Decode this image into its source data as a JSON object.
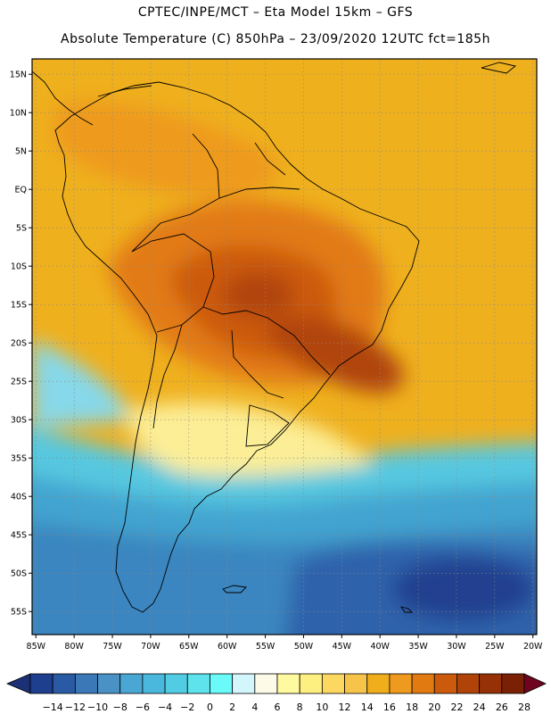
{
  "header": {
    "line1": "CPTEC/INPE/MCT –  Eta Model 15km – GFS",
    "line2": "Absolute Temperature (C) 850hPa – 23/09/2020 12UTC fct=185h"
  },
  "map": {
    "lat_labels": [
      "15N",
      "10N",
      "5N",
      "EQ",
      "5S",
      "10S",
      "15S",
      "20S",
      "25S",
      "30S",
      "35S",
      "40S",
      "45S",
      "50S",
      "55S"
    ],
    "lon_labels": [
      "85W",
      "80W",
      "75W",
      "70W",
      "65W",
      "60W",
      "55W",
      "50W",
      "45W",
      "40W",
      "35W",
      "30W",
      "25W",
      "20W"
    ],
    "lat_values": [
      15,
      10,
      5,
      0,
      -5,
      -10,
      -15,
      -20,
      -25,
      -30,
      -35,
      -40,
      -45,
      -50,
      -55
    ],
    "lon_values": [
      -85,
      -80,
      -75,
      -70,
      -65,
      -60,
      -55,
      -50,
      -45,
      -40,
      -35,
      -30,
      -25,
      -20
    ],
    "extent": {
      "lon_min": -85.5,
      "lon_max": -19.5,
      "lat_min": -58,
      "lat_max": 17
    }
  },
  "colorbar": {
    "labels": [
      "-14",
      "-12",
      "-10",
      "-8",
      "-6",
      "-4",
      "-2",
      "0",
      "2",
      "4",
      "6",
      "8",
      "10",
      "12",
      "14",
      "16",
      "18",
      "20",
      "22",
      "24",
      "26",
      "28"
    ],
    "colors": [
      "#1e3e8e",
      "#2a5aa4",
      "#3a78b8",
      "#4a92c6",
      "#4aa6d2",
      "#4ab8dc",
      "#52cce2",
      "#5ee2ec",
      "#6afafa",
      "#d2f6fc",
      "#fefae8",
      "#fefaa0",
      "#fef080",
      "#fcd860",
      "#f6c44a",
      "#f0ae1c",
      "#ee9a1e",
      "#e27a12",
      "#cc5a0c",
      "#b04408",
      "#963006",
      "#7a2004"
    ],
    "under_color": "#1c3076",
    "over_color": "#700420"
  }
}
